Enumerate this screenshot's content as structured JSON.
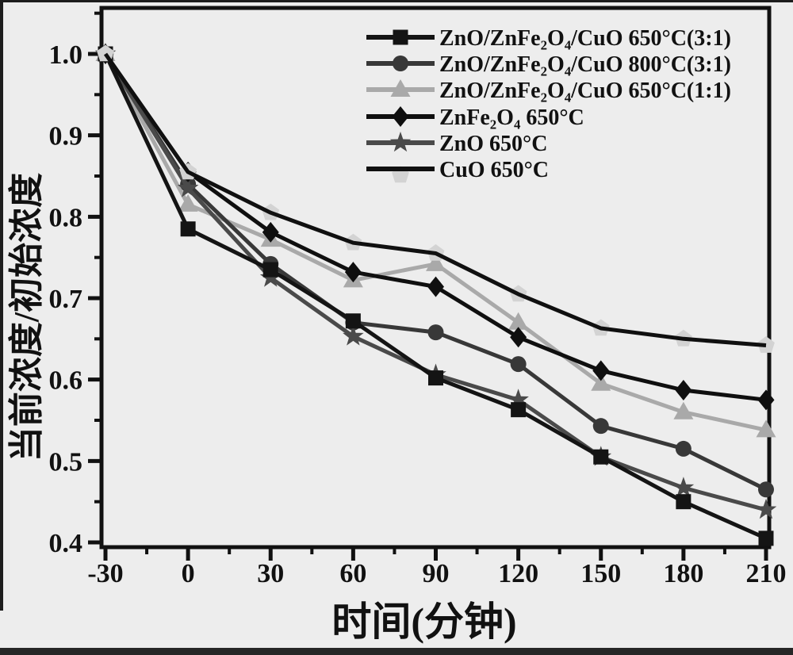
{
  "figure": {
    "bg_color": "#ededed",
    "frame_color": "#111111",
    "text_color": "#111111"
  },
  "chart_data": {
    "type": "line",
    "title": "",
    "xlabel": "时间(分钟)",
    "ylabel": "当前浓度/初始浓度",
    "x": [
      -30,
      0,
      30,
      60,
      90,
      120,
      150,
      180,
      210
    ],
    "x_major_ticks": [
      -30,
      0,
      30,
      60,
      90,
      120,
      150,
      180,
      210
    ],
    "x_tick_labels": [
      "-30",
      "0",
      "30",
      "60",
      "90",
      "120",
      "150",
      "180",
      "210"
    ],
    "x_minor_ticks": [
      -15,
      15,
      45,
      75,
      105,
      135,
      165,
      195
    ],
    "y_major_ticks": [
      0.4,
      0.5,
      0.6,
      0.7,
      0.8,
      0.9,
      1.0
    ],
    "y_tick_labels": [
      "0.4",
      "0.5",
      "0.6",
      "0.7",
      "0.8",
      "0.9",
      "1.0"
    ],
    "y_minor_ticks": [
      0.45,
      0.55,
      0.65,
      0.75,
      0.85,
      0.95,
      1.05
    ],
    "xlim": [
      -31.5,
      211.2
    ],
    "ylim": [
      0.394,
      1.057
    ],
    "grid": false,
    "legend_position": "top-right-inside",
    "series": [
      {
        "name": "ZnO/ZnFe₂O₄/CuO 650°C(3:1)",
        "marker": "square",
        "color": "#141414",
        "marker_color": "#141414",
        "marker_under_line": false,
        "values": [
          1.0,
          0.785,
          0.735,
          0.672,
          0.602,
          0.563,
          0.505,
          0.45,
          0.405
        ]
      },
      {
        "name": "ZnO/ZnFe₂O₄/CuO 800°C(3:1)",
        "marker": "circle",
        "color": "#383838",
        "marker_color": "#383838",
        "marker_under_line": false,
        "values": [
          1.0,
          0.84,
          0.742,
          0.67,
          0.658,
          0.619,
          0.543,
          0.515,
          0.465
        ]
      },
      {
        "name": "ZnO/ZnFe₂O₄/CuO 650°C(1:1)",
        "marker": "triangle-up",
        "color": "#a9a9a9",
        "marker_color": "#a9a9a9",
        "marker_under_line": false,
        "values": [
          1.0,
          0.815,
          0.772,
          0.722,
          0.742,
          0.67,
          0.595,
          0.56,
          0.538
        ]
      },
      {
        "name": "ZnFe₂O₄ 650°C",
        "marker": "diamond",
        "color": "#0f0f0f",
        "marker_color": "#0f0f0f",
        "marker_under_line": false,
        "values": [
          1.0,
          0.855,
          0.781,
          0.732,
          0.714,
          0.652,
          0.611,
          0.587,
          0.575
        ]
      },
      {
        "name": "ZnO 650°C",
        "marker": "star",
        "color": "#4a4a4a",
        "marker_color": "#4a4a4a",
        "marker_under_line": false,
        "values": [
          1.0,
          0.835,
          0.725,
          0.653,
          0.606,
          0.575,
          0.505,
          0.467,
          0.44
        ]
      },
      {
        "name": "CuO 650°C",
        "marker": "pentagon",
        "color": "#101010",
        "marker_color": "#d3d3d3",
        "marker_under_line": true,
        "values": [
          1.0,
          0.855,
          0.805,
          0.768,
          0.755,
          0.705,
          0.663,
          0.65,
          0.642
        ]
      }
    ]
  }
}
